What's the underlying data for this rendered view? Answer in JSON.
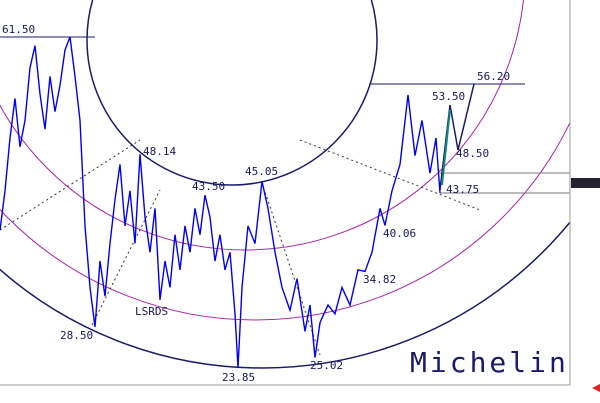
{
  "chart_data": {
    "type": "line",
    "title": "Michelin",
    "x": [
      0,
      5,
      10,
      15,
      20,
      25,
      30,
      35,
      40,
      45,
      50,
      55,
      60,
      65,
      70,
      75,
      80,
      85,
      90,
      95,
      100,
      105,
      110,
      115,
      120,
      125,
      130,
      135,
      140,
      145,
      150,
      155,
      160,
      165,
      170,
      175,
      180,
      185,
      190,
      195,
      200,
      205,
      210,
      215,
      220,
      225,
      230,
      235,
      238,
      242,
      248,
      255,
      262,
      268,
      275,
      282,
      290,
      297,
      305,
      310,
      315,
      320,
      328,
      335,
      342,
      350,
      358,
      365,
      372,
      380,
      385,
      392,
      400,
      408,
      415,
      422,
      430,
      436,
      440
    ],
    "series": [
      {
        "color": "#0000ee",
        "values": [
          39.5,
          44,
          50,
          54.5,
          49,
          52,
          58,
          60.5,
          55,
          51,
          57,
          53,
          56,
          60,
          61.5,
          57,
          52,
          40,
          33,
          28.5,
          36,
          32,
          38,
          43,
          47,
          40,
          44,
          38,
          48.14,
          41,
          37,
          42,
          31.6,
          36,
          33,
          39,
          35,
          40,
          37,
          42,
          39,
          43.5,
          41,
          36,
          39,
          35,
          37,
          30,
          23.85,
          33,
          40,
          38,
          45.05,
          42,
          37,
          33,
          30.4,
          34,
          28,
          31,
          25.02,
          29,
          31,
          30,
          33,
          31,
          35,
          34.82,
          37,
          42,
          40.06,
          44,
          47,
          54.9,
          48,
          52,
          46,
          50,
          43.75
        ]
      }
    ],
    "xlim": [
      0,
      570
    ],
    "ylim": [
      21.9,
      65.7
    ],
    "annotations": [
      "61.50",
      "48.14",
      "43.50",
      "45.05",
      "56.20",
      "53.50",
      "48.50",
      "43.75",
      "40.06",
      "34.82",
      "28.50",
      "LSRDS",
      "23.85",
      "25.02"
    ]
  }
}
